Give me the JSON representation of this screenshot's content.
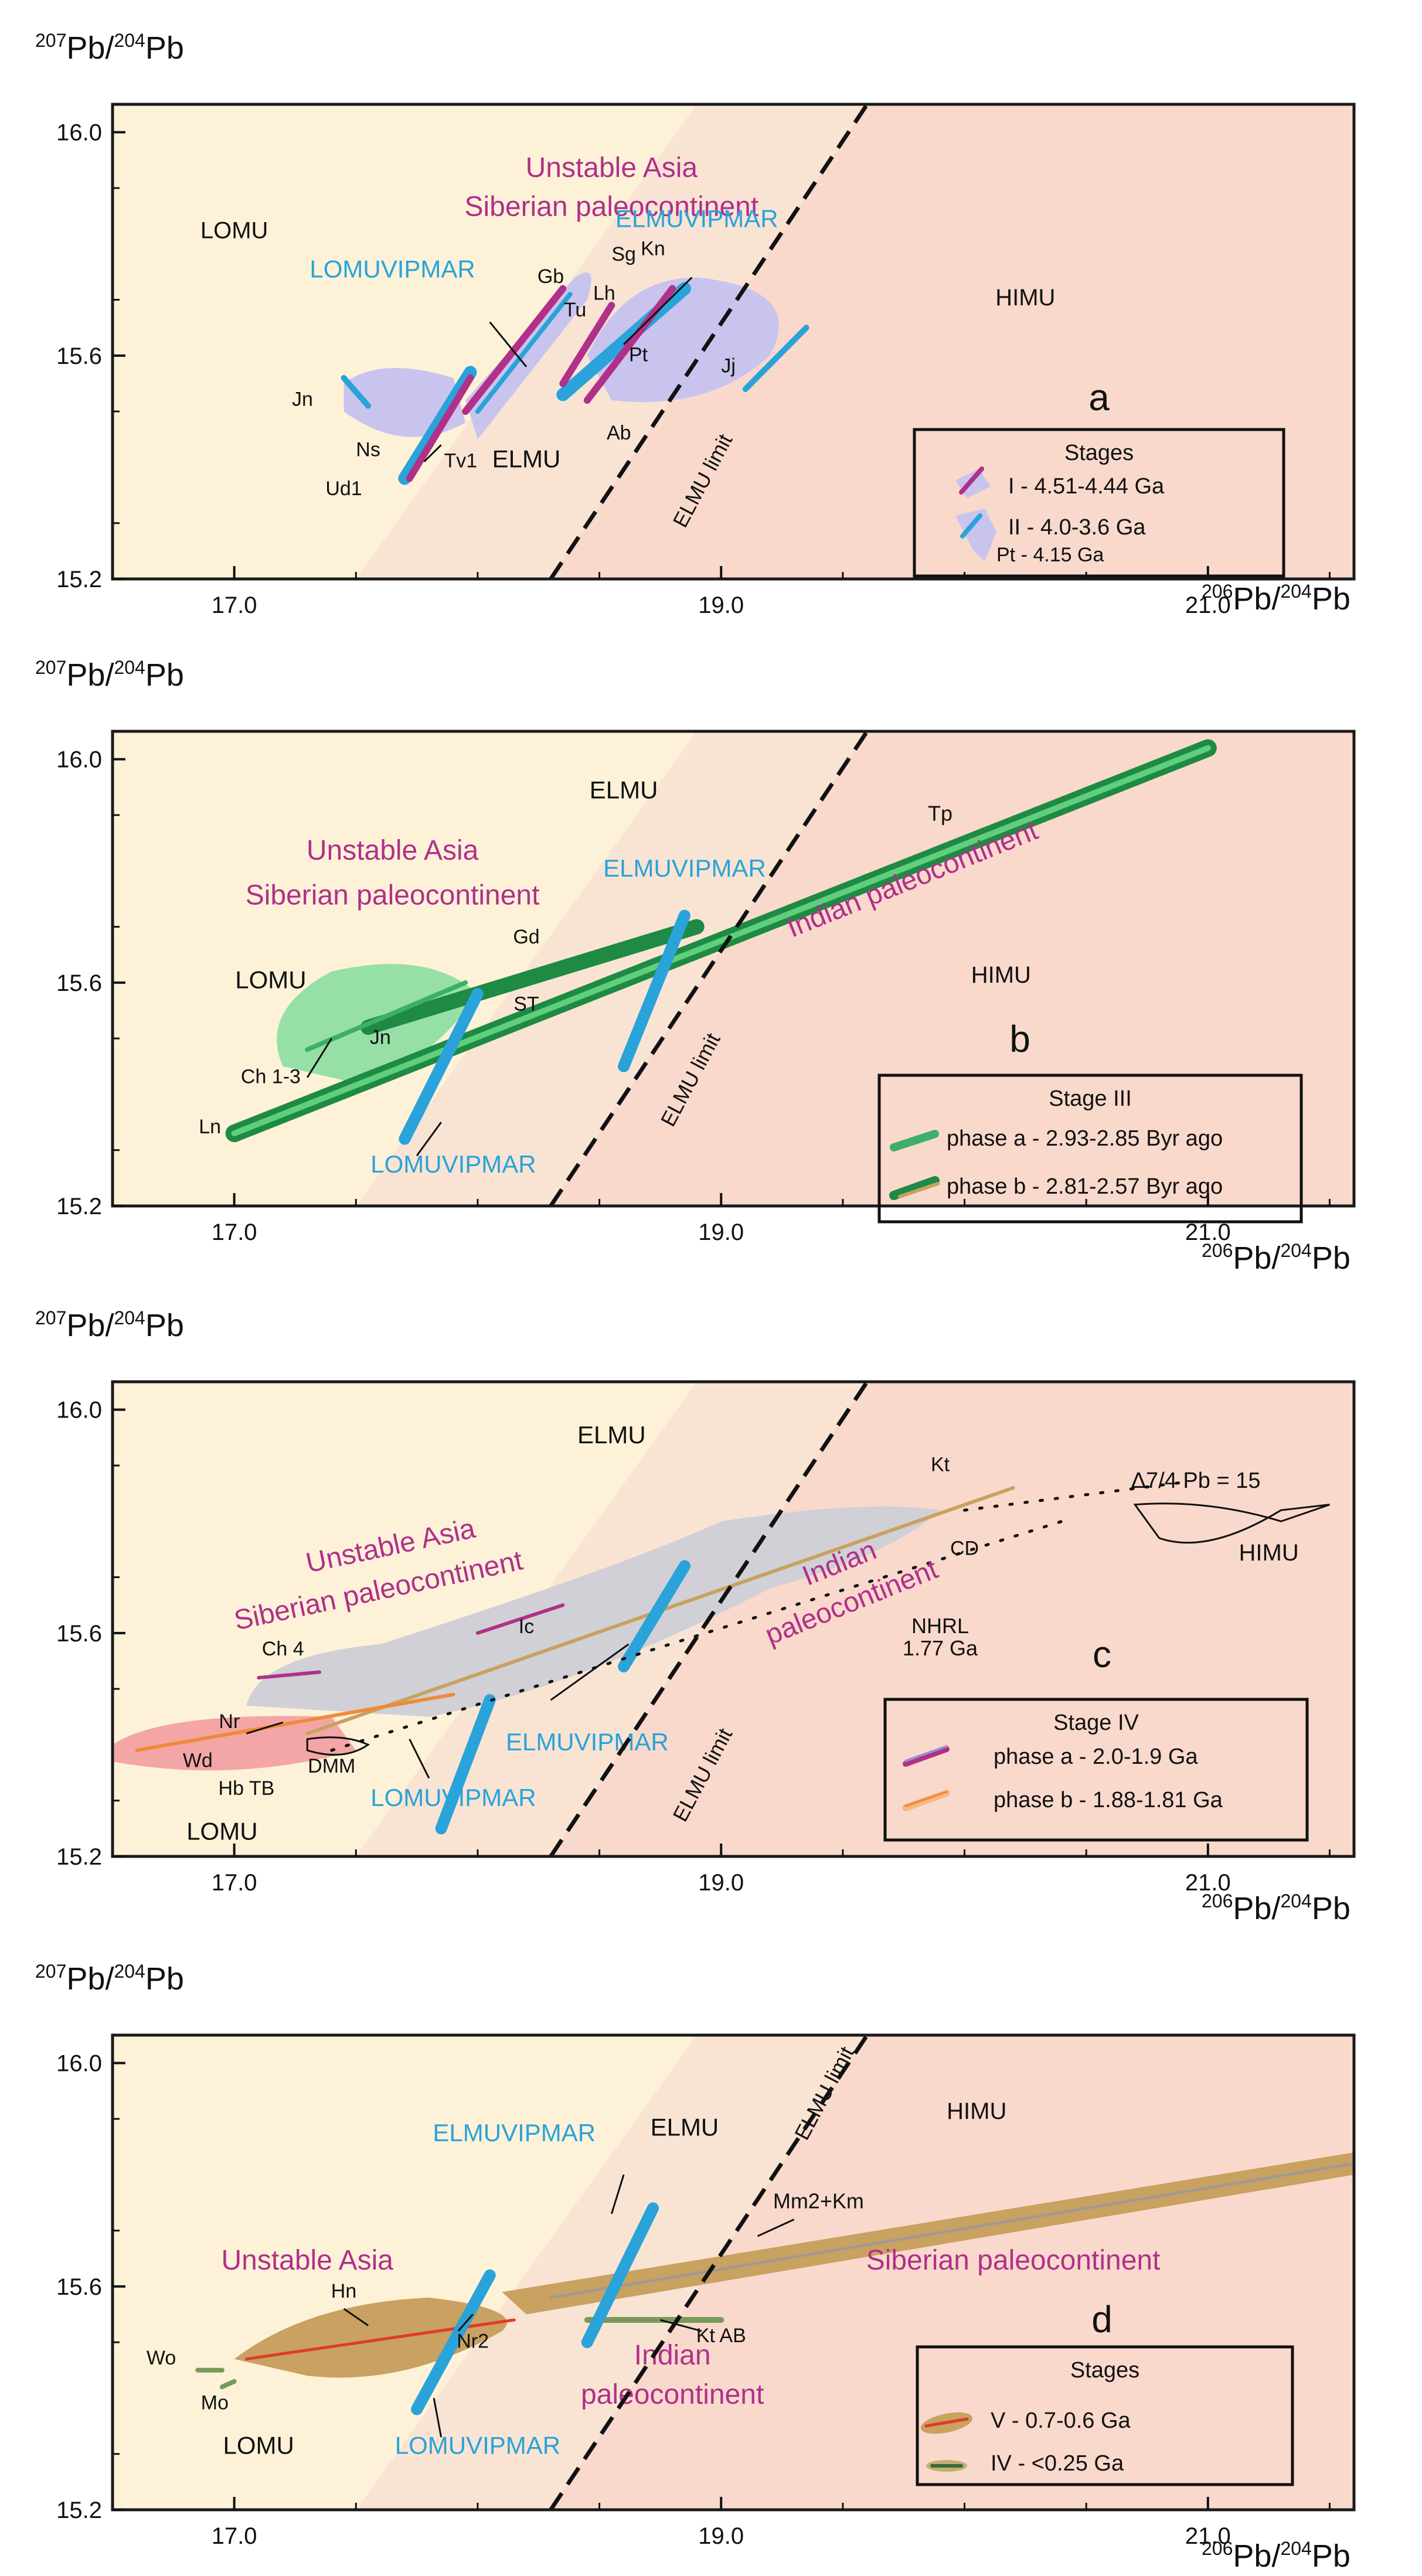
{
  "figure": {
    "axis": {
      "y_label_main": "Pb/",
      "y_label_sup1": "207",
      "y_label_sup2": "204",
      "y_label_tail": "Pb",
      "x_label_sup1": "206",
      "x_label_sup2": "204",
      "x_label_main": "Pb/",
      "x_label_tail": "Pb"
    }
  },
  "colors": {
    "cream": "#fdf2d8",
    "salmon": "#f9d9cc",
    "frame": "#1a1a1a",
    "cyan": "#29a3d9",
    "magenta": "#b0308a",
    "green": "#3caf6a",
    "darkgreen": "#1e8a44",
    "tan": "#c9a160",
    "orange": "#f08a3a",
    "red": "#e03a2a",
    "purple_fill": "#c8c4ee",
    "green_fill": "#96e0a8",
    "gray_fill": "#d0d0d6",
    "pink_fill": "#f4a6a6"
  },
  "chart_data": [
    {
      "id": "a",
      "type": "scatter",
      "xlim": [
        16.5,
        21.6
      ],
      "ylim": [
        15.2,
        16.05
      ],
      "xticks": [
        "17.0",
        "19.0",
        "21.0"
      ],
      "yticks": [
        "15.2",
        "15.6",
        "16.0"
      ],
      "panel_letter": "a",
      "labels": [
        "LOMU",
        "Unstable Asia",
        "Siberian paleocontinent",
        "LOMUVIPMAR",
        "ELMUVIPMAR",
        "HIMU",
        "ELMU",
        "ELMU limit",
        "Jn",
        "Ns",
        "Tv1",
        "Ud1",
        "Gb",
        "Tu",
        "Lh",
        "Sg",
        "Kn",
        "Pt",
        "Ab",
        "Jj"
      ],
      "legend_title": "Stages",
      "legend_items": [
        "I - 4.51-4.44 Ga",
        "II - 4.0-3.6 Ga",
        "Pt - 4.15 Ga"
      ]
    },
    {
      "id": "b",
      "type": "scatter",
      "xlim": [
        16.5,
        21.6
      ],
      "ylim": [
        15.2,
        16.05
      ],
      "xticks": [
        "17.0",
        "19.0",
        "21.0"
      ],
      "yticks": [
        "15.2",
        "15.6",
        "16.0"
      ],
      "panel_letter": "b",
      "labels": [
        "ELMU",
        "Unstable Asia",
        "Siberian paleocontinent",
        "ELMUVIPMAR",
        "Indian paleocontinent",
        "Tp",
        "HIMU",
        "LOMU",
        "Gd",
        "ST",
        "Jn",
        "Ch 1-3",
        "Ln",
        "LOMUVIPMAR",
        "ELMU limit"
      ],
      "legend_title": "Stage III",
      "legend_items": [
        "phase a - 2.93-2.85 Byr ago",
        "phase b - 2.81-2.57 Byr ago"
      ]
    },
    {
      "id": "c",
      "type": "scatter",
      "xlim": [
        16.5,
        21.6
      ],
      "ylim": [
        15.2,
        16.05
      ],
      "xticks": [
        "17.0",
        "19.0",
        "21.0"
      ],
      "yticks": [
        "15.2",
        "15.6",
        "16.0"
      ],
      "panel_letter": "c",
      "labels": [
        "ELMU",
        "Kt",
        "Δ7/4 Pb = 15",
        "Unstable Asia",
        "Siberian paleocontinent",
        "Indian",
        "paleocontinent",
        "CD",
        "HIMU",
        "NHRL",
        "1.77 Ga",
        "Ch 4",
        "Ic",
        "Nr",
        "Wd",
        "DMM",
        "Hb TB",
        "LOMU",
        "ELMUVIPMAR",
        "LOMUVIPMAR",
        "ELMU limit"
      ],
      "legend_title": "Stage IV",
      "legend_items": [
        "phase a - 2.0-1.9 Ga",
        "phase b - 1.88-1.81 Ga"
      ]
    },
    {
      "id": "d",
      "type": "scatter",
      "xlim": [
        16.5,
        21.6
      ],
      "ylim": [
        15.2,
        16.05
      ],
      "xticks": [
        "17.0",
        "19.0",
        "21.0"
      ],
      "yticks": [
        "15.2",
        "15.6",
        "16.0"
      ],
      "panel_letter": "d",
      "labels": [
        "ELMUVIPMAR",
        "ELMU",
        "ELMU limit",
        "HIMU",
        "Mm2+Km",
        "Unstable Asia",
        "Siberian paleocontinent",
        "Hn",
        "Nr2",
        "Kt AB",
        "Indian",
        "paleocontinent",
        "Wo",
        "Mo",
        "LOMU",
        "LOMUVIPMAR"
      ],
      "legend_title": "Stages",
      "legend_items": [
        "V - 0.7-0.6 Ga",
        "IV - <0.25 Ga"
      ]
    }
  ]
}
